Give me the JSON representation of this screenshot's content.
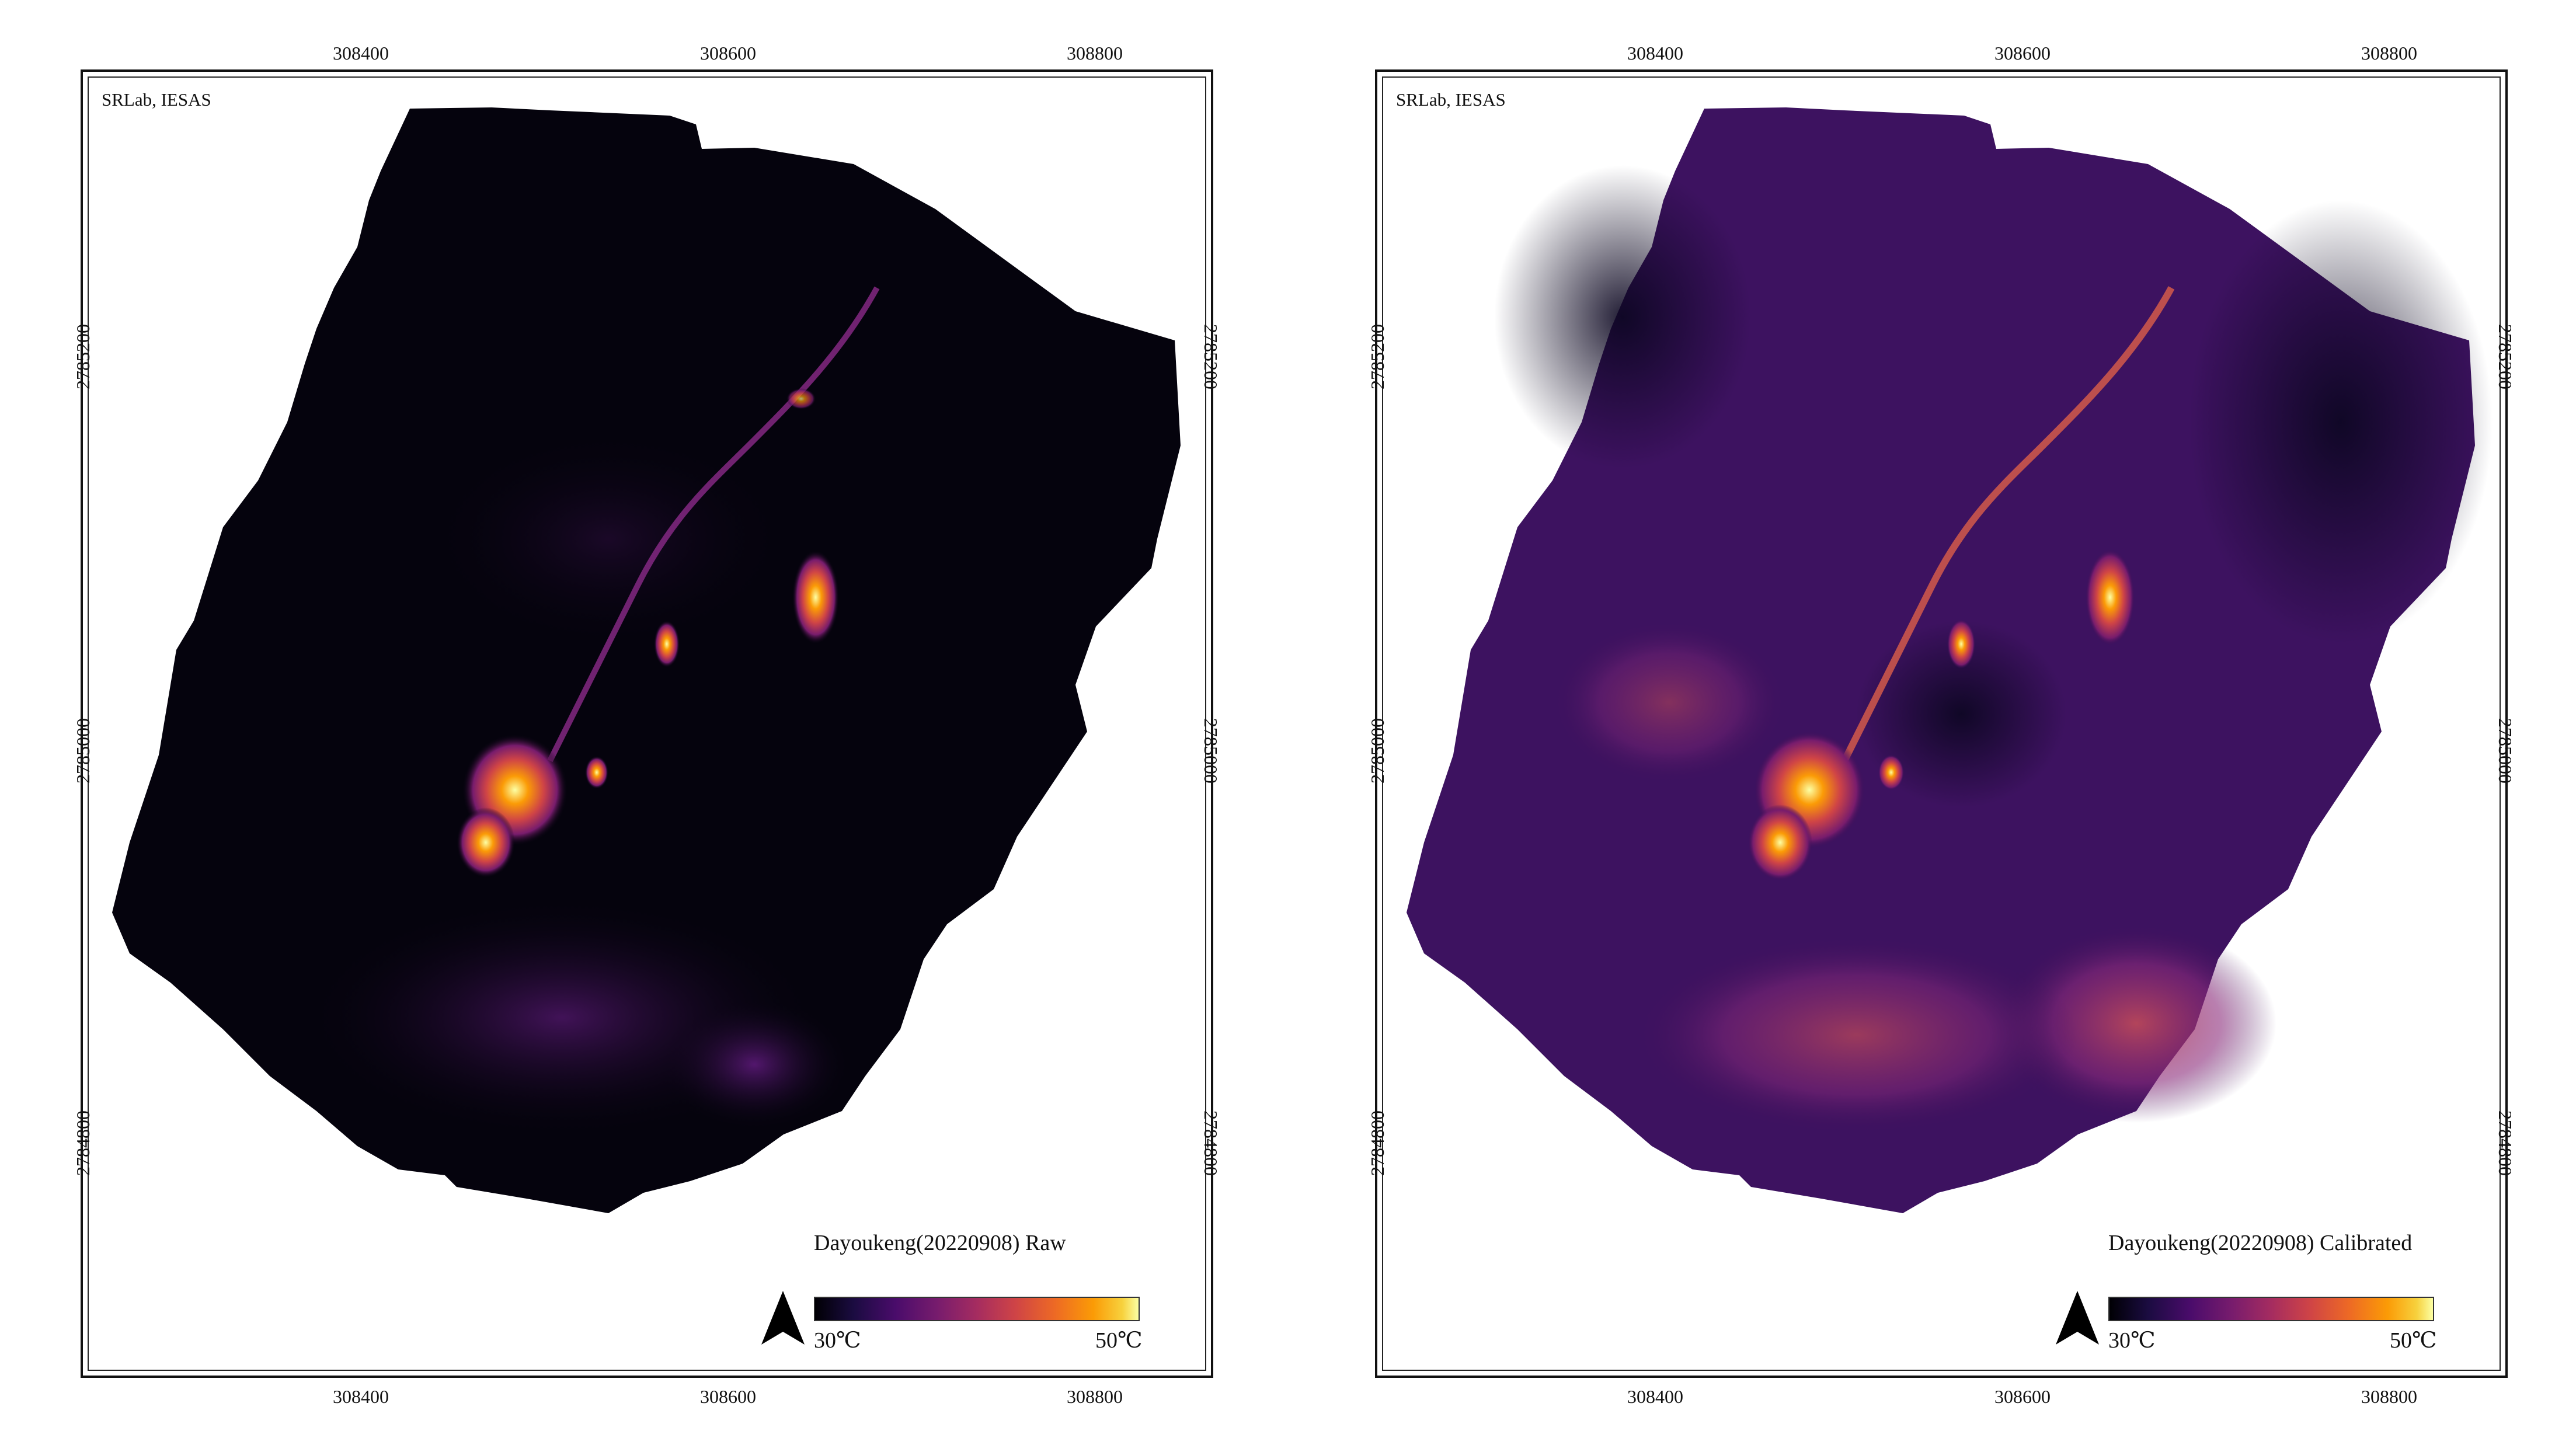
{
  "panels": [
    {
      "id": "raw",
      "credit": "SRLab, IESAS",
      "title": "Dayoukeng(20220908) Raw",
      "x_ticks": [
        "308400",
        "308600",
        "308800"
      ],
      "y_ticks": [
        "2785200",
        "2785000",
        "2784800"
      ],
      "colorbar": {
        "min_label": "30℃",
        "max_label": "50℃"
      },
      "north_arrow": "north-arrow-icon"
    },
    {
      "id": "calibrated",
      "credit": "SRLab, IESAS",
      "title": "Dayoukeng(20220908) Calibrated",
      "x_ticks": [
        "308400",
        "308600",
        "308800"
      ],
      "y_ticks": [
        "2785200",
        "2785000",
        "2784800"
      ],
      "colorbar": {
        "min_label": "30℃",
        "max_label": "50℃"
      },
      "north_arrow": "north-arrow-icon"
    }
  ],
  "colormap": {
    "name": "inferno",
    "stops": [
      "#000004",
      "#1b0c41",
      "#4a0c6b",
      "#781c6d",
      "#a52c60",
      "#cf4446",
      "#ed6925",
      "#fb9b06",
      "#f7d13d",
      "#fcffa4"
    ]
  }
}
